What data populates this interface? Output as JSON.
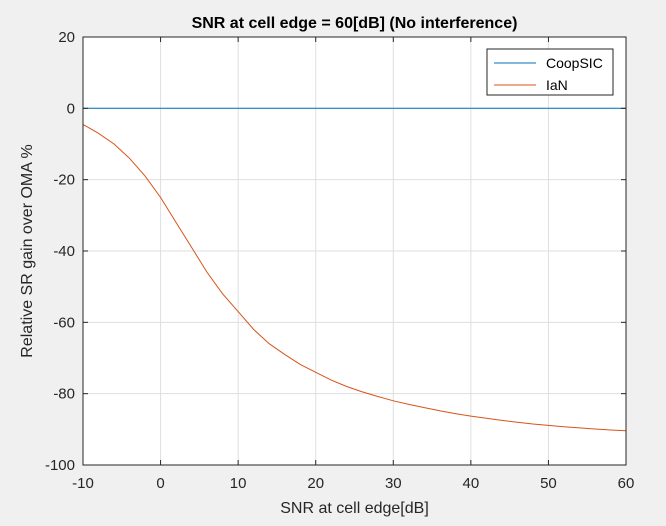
{
  "figure": {
    "background": "#f0f0f0"
  },
  "chart_data": {
    "type": "line",
    "title": "SNR at cell edge = 60[dB] (No interference)",
    "xlabel": "SNR at cell edge[dB]",
    "ylabel": "Relative SR gain over OMA %",
    "xlim": [
      -10,
      60
    ],
    "ylim": [
      -100,
      20
    ],
    "xticks": [
      -10,
      0,
      10,
      20,
      30,
      40,
      50,
      60
    ],
    "yticks": [
      -100,
      -80,
      -60,
      -40,
      -20,
      0,
      20
    ],
    "grid": true,
    "legend": {
      "position": "top-right"
    },
    "series": [
      {
        "name": "CoopSIC",
        "color": "#0072bd",
        "x": [
          -10,
          60
        ],
        "y": [
          0,
          0
        ]
      },
      {
        "name": "IaN",
        "color": "#d95319",
        "x": [
          -10,
          -8,
          -6,
          -4,
          -2,
          0,
          2,
          4,
          6,
          8,
          10,
          12,
          14,
          16,
          18,
          20,
          22,
          24,
          26,
          28,
          30,
          32,
          34,
          36,
          38,
          40,
          42,
          44,
          46,
          48,
          50,
          52,
          54,
          56,
          58,
          60
        ],
        "y": [
          -4.5,
          -7,
          -10,
          -14,
          -19,
          -25,
          -32,
          -39,
          -46,
          -52,
          -57,
          -62,
          -66,
          -69,
          -71.8,
          -74,
          -76.2,
          -78,
          -79.5,
          -80.8,
          -82,
          -83,
          -83.9,
          -84.8,
          -85.6,
          -86.3,
          -86.9,
          -87.5,
          -88,
          -88.5,
          -88.9,
          -89.3,
          -89.6,
          -89.9,
          -90.2,
          -90.4
        ]
      }
    ]
  }
}
